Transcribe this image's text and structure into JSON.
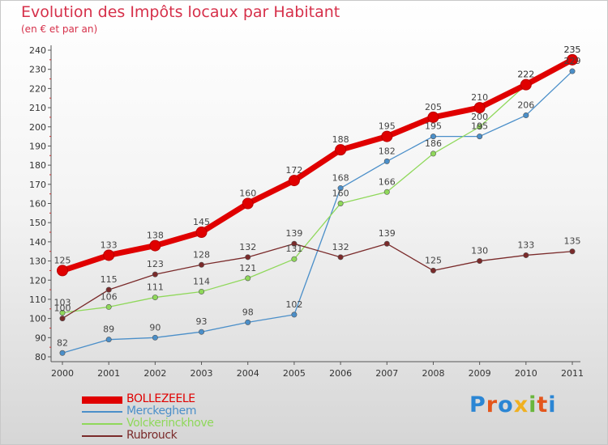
{
  "header": {
    "title": "Evolution des Impôts locaux par Habitant",
    "subtitle": "(en € et par an)"
  },
  "logo": {
    "text": "Proxiti",
    "letter_colors": [
      "#2b86d4",
      "#e4561c",
      "#2b86d4",
      "#f0b020",
      "#6ab63c",
      "#e4561c",
      "#2b86d4"
    ]
  },
  "chart_data": {
    "type": "line",
    "x": [
      "2000",
      "2001",
      "2002",
      "2003",
      "2004",
      "2005",
      "2006",
      "2007",
      "2008",
      "2009",
      "2010",
      "2011"
    ],
    "ylim": [
      80,
      240
    ],
    "yticks": [
      80,
      90,
      100,
      110,
      120,
      130,
      140,
      150,
      160,
      170,
      180,
      190,
      200,
      210,
      220,
      230,
      240
    ],
    "grid": false,
    "legend_position": "bottom-left",
    "series": [
      {
        "name": "BOLLEZEELE",
        "color": "#e00000",
        "emphasis": true,
        "values": [
          125,
          133,
          138,
          145,
          160,
          172,
          188,
          195,
          205,
          210,
          222,
          235
        ]
      },
      {
        "name": "Merckeghem",
        "color": "#4b8fc9",
        "emphasis": false,
        "values": [
          82,
          89,
          90,
          93,
          98,
          102,
          168,
          182,
          195,
          195,
          206,
          229
        ]
      },
      {
        "name": "Volckerinckhove",
        "color": "#8fd85a",
        "emphasis": false,
        "values": [
          103,
          106,
          111,
          114,
          121,
          131,
          160,
          166,
          186,
          200,
          222,
          235
        ]
      },
      {
        "name": "Rubrouck",
        "color": "#7a2a2a",
        "emphasis": false,
        "values": [
          100,
          115,
          123,
          128,
          132,
          139,
          132,
          139,
          125,
          130,
          133,
          135
        ]
      }
    ],
    "data_labels": [
      [
        125,
        133,
        138,
        145,
        160,
        172,
        188,
        195,
        205,
        210,
        222,
        235
      ],
      [
        82,
        89,
        90,
        93,
        98,
        102,
        168,
        182,
        195,
        195,
        206,
        229
      ],
      [
        103,
        106,
        111,
        114,
        121,
        131,
        160,
        166,
        186,
        200,
        222,
        235
      ],
      [
        100,
        115,
        123,
        128,
        132,
        139,
        132,
        139,
        125,
        130,
        133,
        135
      ]
    ]
  }
}
